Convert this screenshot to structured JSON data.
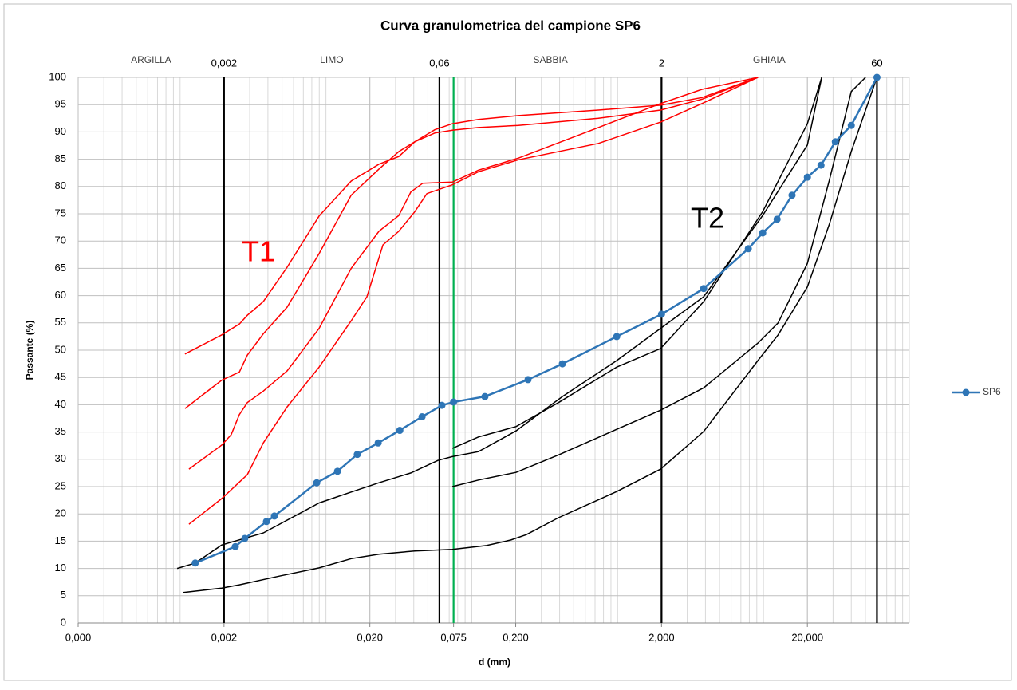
{
  "chart_data": {
    "type": "line",
    "title": "Curva granulometrica del campione SP6",
    "xlabel": "d (mm)",
    "ylabel": "Passante (%)",
    "xscale": "log",
    "xlim": [
      0.0002,
      100
    ],
    "ylim": [
      0,
      100
    ],
    "xticks": [
      {
        "value": 0.0002,
        "label": "0,000"
      },
      {
        "value": 0.002,
        "label": "0,002"
      },
      {
        "value": 0.02,
        "label": "0,020"
      },
      {
        "value": 0.075,
        "label": "0,075"
      },
      {
        "value": 0.2,
        "label": "0,200"
      },
      {
        "value": 2,
        "label": "2,000"
      },
      {
        "value": 20,
        "label": "20,000"
      }
    ],
    "yticks": [
      0,
      5,
      10,
      15,
      20,
      25,
      30,
      35,
      40,
      45,
      50,
      55,
      60,
      65,
      70,
      75,
      80,
      85,
      90,
      95,
      100
    ],
    "grid": true,
    "minor_grid": true,
    "legend": "right",
    "zones": [
      "ARGILLA",
      "LIMO",
      "SABBIA",
      "GHIAIA"
    ],
    "vlines": [
      {
        "value": 0.002,
        "label": "0,002",
        "color": "#000000"
      },
      {
        "value": 0.06,
        "label": "0,06",
        "color": "#000000"
      },
      {
        "value": 0.075,
        "color": "#00b050"
      },
      {
        "value": 2,
        "label": "2",
        "color": "#000000"
      },
      {
        "value": 60,
        "label": "60",
        "color": "#000000"
      }
    ],
    "annotations": [
      {
        "text": "T1",
        "color": "#ff0000"
      },
      {
        "text": "T2",
        "color": "#000000"
      }
    ],
    "series": [
      {
        "color": "#ff0000",
        "x": [
          0.00108,
          0.00193,
          0.00255,
          0.00289,
          0.00372,
          0.00542,
          0.00898,
          0.0149,
          0.0231,
          0.0316,
          0.0407,
          0.0557,
          0.0736,
          0.111,
          0.209,
          0.738,
          1.97,
          3.79,
          9.16
        ],
        "values": [
          49.3,
          52.8,
          54.8,
          56.4,
          58.9,
          65.2,
          74.6,
          81,
          84.1,
          85.5,
          88.2,
          90.4,
          91.5,
          92.3,
          93,
          94,
          94.9,
          96.3,
          100
        ]
      },
      {
        "color": "#ff0000",
        "x": [
          0.00108,
          0.00193,
          0.00255,
          0.00289,
          0.00372,
          0.00542,
          0.00898,
          0.0149,
          0.0231,
          0.0316,
          0.0407,
          0.0557,
          0.0736,
          0.111,
          0.209,
          0.738,
          1.97,
          3.79,
          9.16
        ],
        "values": [
          39.3,
          44.5,
          46,
          49.1,
          53,
          57.9,
          67.7,
          78.4,
          83.2,
          86.4,
          88.2,
          89.8,
          90.3,
          90.8,
          91.2,
          92.5,
          94,
          96,
          100
        ]
      },
      {
        "color": "#ff0000",
        "x": [
          0.00115,
          0.00193,
          0.00224,
          0.00255,
          0.00289,
          0.00372,
          0.00542,
          0.00898,
          0.0149,
          0.0231,
          0.0316,
          0.0382,
          0.0461,
          0.0736,
          0.111,
          0.209,
          0.738,
          1.97,
          3.79,
          9.16
        ],
        "values": [
          28.2,
          32.6,
          34.5,
          38.2,
          40.4,
          42.5,
          46.2,
          54,
          65,
          71.8,
          74.7,
          79,
          80.6,
          80.8,
          83,
          85.2,
          90.8,
          95.2,
          97.8,
          100
        ]
      },
      {
        "color": "#ff0000",
        "x": [
          0.00115,
          0.00193,
          0.00289,
          0.00372,
          0.00542,
          0.00898,
          0.0149,
          0.0191,
          0.0246,
          0.0316,
          0.0407,
          0.0492,
          0.0736,
          0.111,
          0.209,
          0.738,
          1.97,
          3.79,
          9.16
        ],
        "values": [
          18.1,
          22.8,
          27.2,
          33,
          39.6,
          46.9,
          55.4,
          59.8,
          69.3,
          71.8,
          75.4,
          78.7,
          80.3,
          82.7,
          84.9,
          87.9,
          91.8,
          95.2,
          100
        ]
      },
      {
        "color": "#000000",
        "x": [
          0.000954,
          0.00127,
          0.00193,
          0.00372,
          0.00898,
          0.0149,
          0.0231,
          0.0382,
          0.0586,
          0.0736,
          0.111,
          0.201,
          0.418,
          0.986,
          1.97,
          3.89,
          9.88,
          20,
          25.1
        ],
        "values": [
          10,
          11,
          14.3,
          16.5,
          22,
          24,
          25.7,
          27.5,
          29.8,
          30.5,
          31.4,
          35.2,
          41.5,
          48.1,
          54,
          59.8,
          74.7,
          87.6,
          100
        ]
      },
      {
        "color": "#000000",
        "x": [
          0.0736,
          0.111,
          0.201,
          0.393,
          0.986,
          1.97,
          3.89,
          9.88,
          20,
          25.1
        ],
        "values": [
          32,
          34.1,
          36,
          40.4,
          46.9,
          50.3,
          58.9,
          75.4,
          91.5,
          100
        ]
      },
      {
        "color": "#000000",
        "x": [
          0.0736,
          0.111,
          0.201,
          0.393,
          0.986,
          1.97,
          3.89,
          9.16,
          12.6,
          20,
          28.4,
          40,
          50.1
        ],
        "values": [
          25,
          26.2,
          27.6,
          30.8,
          35.5,
          39,
          43.1,
          51.3,
          55,
          65.9,
          81.3,
          97.4,
          100
        ]
      },
      {
        "color": "#000000",
        "x": [
          0.00105,
          0.00193,
          0.00255,
          0.00479,
          0.00898,
          0.0149,
          0.0231,
          0.0407,
          0.0736,
          0.126,
          0.185,
          0.237,
          0.393,
          0.986,
          1.97,
          3.89,
          9.16,
          12.6,
          20,
          28.4,
          40,
          60
        ],
        "values": [
          5.6,
          6.4,
          7,
          8.6,
          10.1,
          11.8,
          12.6,
          13.2,
          13.5,
          14.2,
          15.2,
          16.2,
          19.3,
          24.1,
          28.2,
          35.1,
          48.1,
          52.8,
          61.6,
          73.2,
          86.4,
          100
        ]
      },
      {
        "name": "SP6",
        "color": "#2e75b6",
        "markers": true,
        "x": [
          0.00127,
          0.00239,
          0.00278,
          0.00391,
          0.00443,
          0.00865,
          0.012,
          0.0164,
          0.0228,
          0.0321,
          0.0456,
          0.0624,
          0.075,
          0.123,
          0.243,
          0.418,
          0.986,
          2,
          3.89,
          7.87,
          9.88,
          12.4,
          15.7,
          20,
          24.8,
          31.1,
          40,
          60
        ],
        "values": [
          11,
          14,
          15.5,
          18.6,
          19.6,
          25.7,
          27.8,
          30.9,
          33,
          35.3,
          37.8,
          39.9,
          40.5,
          41.5,
          44.6,
          47.5,
          52.5,
          56.6,
          61.3,
          68.6,
          71.5,
          74,
          78.4,
          81.7,
          83.9,
          88.2,
          91.2,
          100
        ]
      }
    ]
  }
}
